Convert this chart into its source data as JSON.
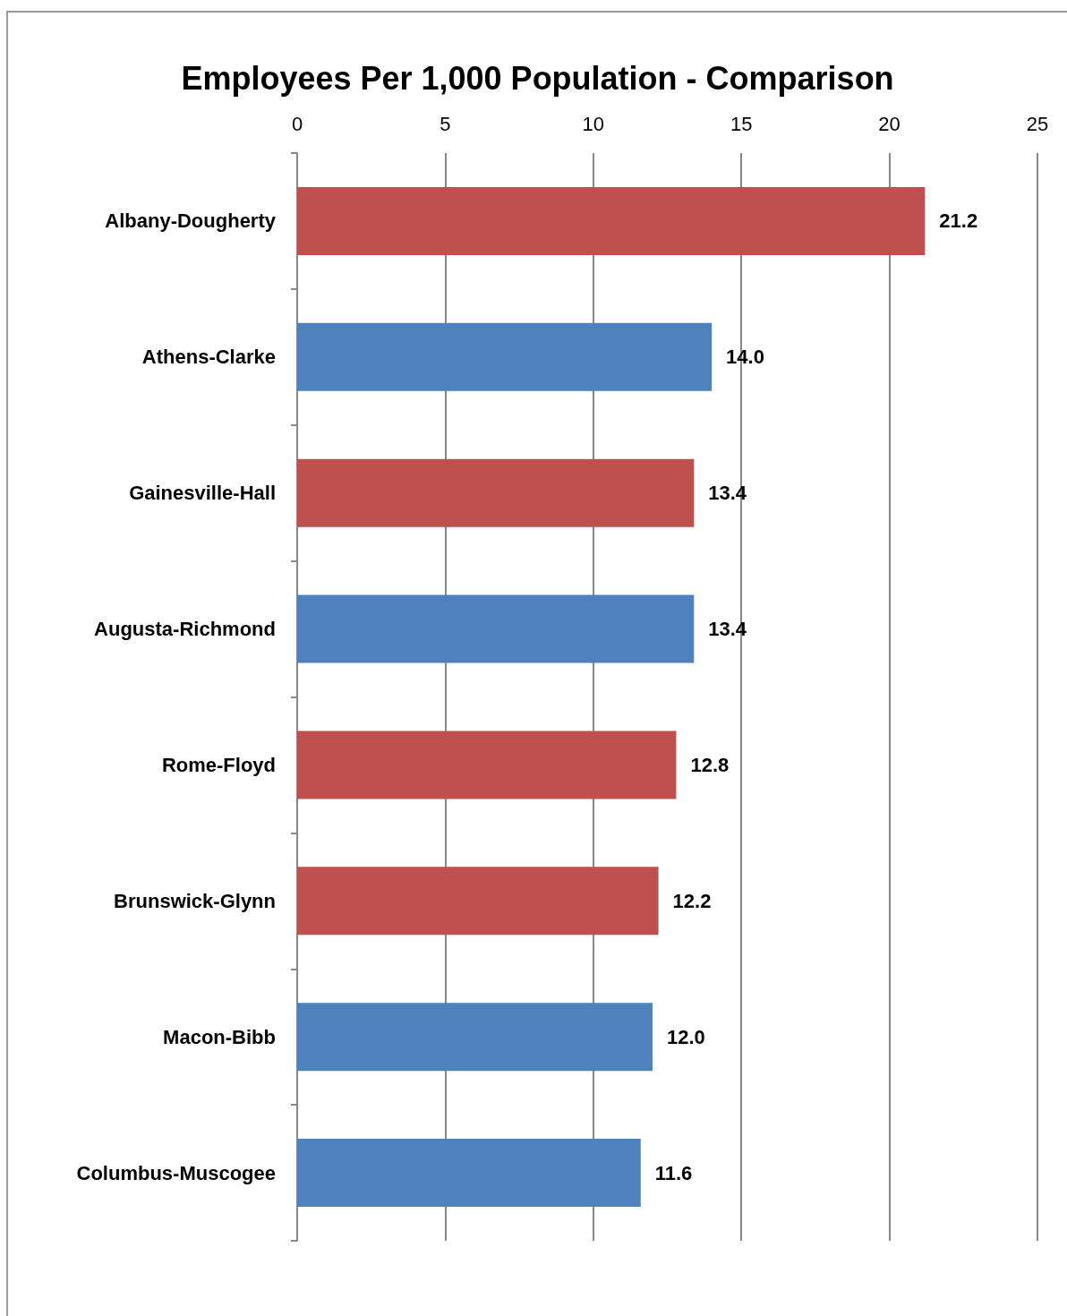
{
  "chart_data": {
    "type": "bar",
    "orientation": "horizontal",
    "title": "Employees Per 1,000 Population - Comparison",
    "categories": [
      "Albany-Dougherty",
      "Athens-Clarke",
      "Gainesville-Hall",
      "Augusta-Richmond",
      "Rome-Floyd",
      "Brunswick-Glynn",
      "Macon-Bibb",
      "Columbus-Muscogee"
    ],
    "values": [
      21.2,
      14.0,
      13.4,
      13.4,
      12.8,
      12.2,
      12.0,
      11.6
    ],
    "value_labels": [
      "21.2",
      "14.0",
      "13.4",
      "13.4",
      "12.8",
      "12.2",
      "12.0",
      "11.6"
    ],
    "colors": [
      "#c0504d",
      "#4f81bd",
      "#c0504d",
      "#4f81bd",
      "#c0504d",
      "#c0504d",
      "#4f81bd",
      "#4f81bd"
    ],
    "xlim": [
      0,
      25
    ],
    "xticks": [
      0,
      5,
      10,
      15,
      20,
      25
    ],
    "grid": "x"
  }
}
